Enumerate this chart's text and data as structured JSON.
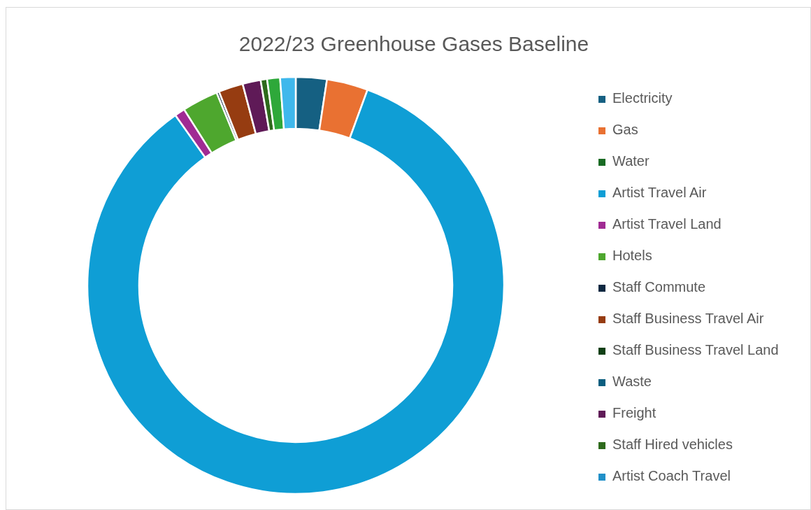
{
  "chart_data": {
    "type": "donut",
    "title": "2022/23 Greenhouse Gases Baseline",
    "categories": [
      "Electricity",
      "Gas",
      "Water",
      "Artist Travel Air",
      "Artist Travel Land",
      "Hotels",
      "Staff Commute",
      "Staff Business Travel Air",
      "Staff Business Travel Land",
      "Waste",
      "Freight",
      "Staff Hired vehicles",
      "Artist Coach Travel",
      null,
      null
    ],
    "values": [
      2.4,
      3.2,
      0,
      84.6,
      0.8,
      2.8,
      0.2,
      1.9,
      0,
      0,
      1.4,
      0.5,
      0,
      1.0,
      1.2
    ],
    "colors": [
      "#156082",
      "#e97132",
      "#196b24",
      "#0f9ed5",
      "#a02b93",
      "#4ea72e",
      "#0e2841",
      "#963c11",
      "#0f3f15",
      "#0b5e7f",
      "#5f1a57",
      "#2e6a1c",
      "#2090c8",
      "#2ea83a",
      "#3fb8ec"
    ],
    "legend": "right"
  }
}
